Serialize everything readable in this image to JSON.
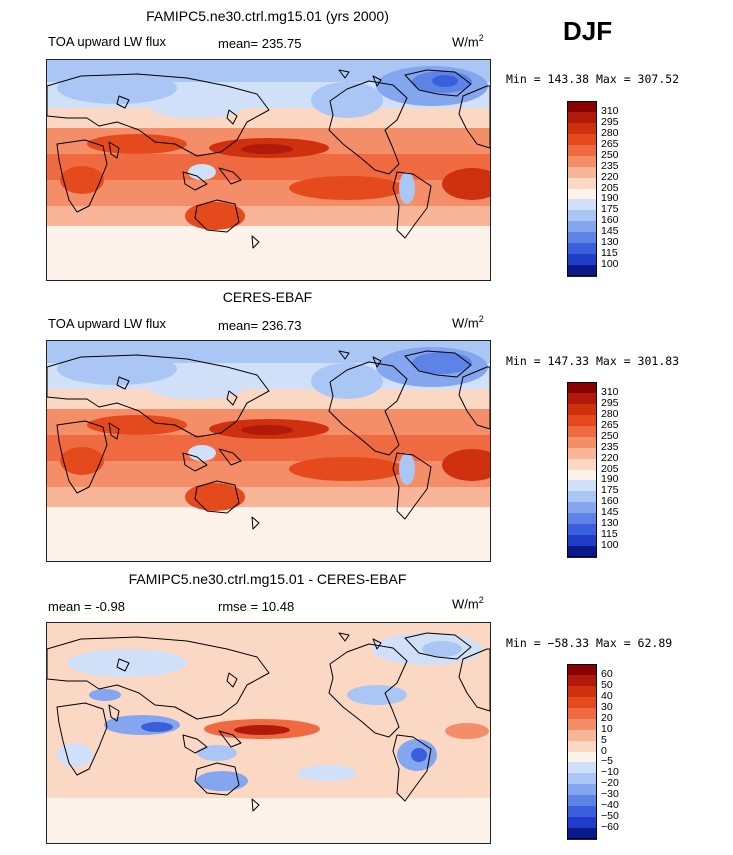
{
  "season": "DJF",
  "units": "W/m",
  "units_exp": "2",
  "panels": [
    {
      "title": "FAMIPC5.ne30.ctrl.mg15.01 (yrs 2000)",
      "variable": "TOA upward LW flux",
      "stat_left": "",
      "stat_mid": "mean=  235.75",
      "minmax": "Min = 143.38 Max = 307.52",
      "kind": "abs"
    },
    {
      "title": "CERES-EBAF",
      "variable": "TOA upward LW flux",
      "stat_left": "",
      "stat_mid": "mean=  236.73",
      "minmax": "Min = 147.33 Max = 301.83",
      "kind": "abs"
    },
    {
      "title": "FAMIPC5.ne30.ctrl.mg15.01 - CERES-EBAF",
      "variable": "",
      "stat_left": "mean =   -0.98",
      "stat_mid": "rmse =   10.48",
      "minmax": "Min = −58.33 Max =  62.89",
      "kind": "diff"
    }
  ],
  "colorbar_abs": {
    "labels": [
      "310",
      "295",
      "280",
      "265",
      "250",
      "235",
      "220",
      "205",
      "190",
      "175",
      "160",
      "145",
      "130",
      "115",
      "100"
    ],
    "colors": [
      "#8a0000",
      "#b01a0a",
      "#cf300e",
      "#e54a1c",
      "#ef6a40",
      "#f48e68",
      "#f8b598",
      "#fbd8c4",
      "#fdf3ea",
      "#cfe0f8",
      "#aac6f4",
      "#84a6ee",
      "#5d83e6",
      "#3a5fdc",
      "#1f3dc8",
      "#0b1a8a"
    ]
  },
  "colorbar_diff": {
    "labels": [
      "60",
      "50",
      "40",
      "30",
      "20",
      "10",
      "5",
      "0",
      "−5",
      "−10",
      "−20",
      "−30",
      "−40",
      "−50",
      "−60"
    ],
    "colors": [
      "#8a0000",
      "#b01a0a",
      "#cf300e",
      "#e54a1c",
      "#ef6a40",
      "#f48e68",
      "#f8b598",
      "#fbd8c4",
      "#fdf3ea",
      "#cfe0f8",
      "#aac6f4",
      "#84a6ee",
      "#5d83e6",
      "#3a5fdc",
      "#1f3dc8",
      "#0b1a8a"
    ]
  }
}
